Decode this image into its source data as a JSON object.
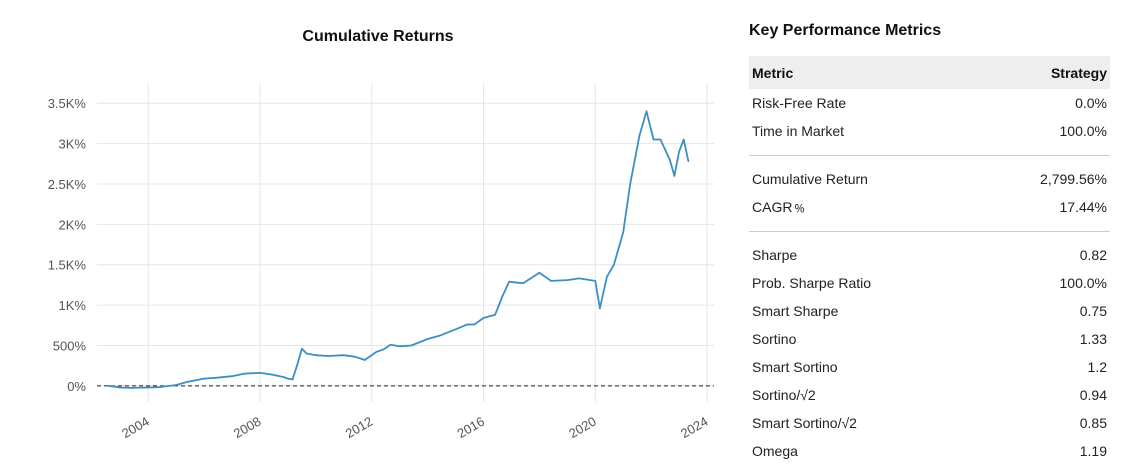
{
  "chart_data": {
    "type": "line",
    "title": "Cumulative Returns",
    "xlabel": "",
    "ylabel": "",
    "x_range": [
      "2002-03",
      "2024-04"
    ],
    "ylim": [
      -200,
      3750
    ],
    "x_ticks": [
      "2004",
      "2008",
      "2012",
      "2016",
      "2020",
      "2024"
    ],
    "y_ticks": [
      0,
      500,
      1000,
      1500,
      2000,
      2500,
      3000,
      3500
    ],
    "y_tick_labels": [
      "0%",
      "500%",
      "1K%",
      "1.5K%",
      "2K%",
      "2.5K%",
      "3K%",
      "3.5K%"
    ],
    "grid": true,
    "reference_line": {
      "y": 0,
      "style": "dashed"
    },
    "series": [
      {
        "color": "#3b8fc4",
        "points": [
          [
            "2002-08",
            0
          ],
          [
            "2003-01",
            -20
          ],
          [
            "2003-06",
            -25
          ],
          [
            "2004-01",
            -20
          ],
          [
            "2004-06",
            -15
          ],
          [
            "2005-01",
            10
          ],
          [
            "2005-06",
            50
          ],
          [
            "2006-01",
            90
          ],
          [
            "2006-06",
            100
          ],
          [
            "2007-01",
            120
          ],
          [
            "2007-06",
            150
          ],
          [
            "2008-01",
            160
          ],
          [
            "2008-06",
            140
          ],
          [
            "2008-11",
            110
          ],
          [
            "2009-01",
            90
          ],
          [
            "2009-03",
            80
          ],
          [
            "2009-05",
            260
          ],
          [
            "2009-07",
            460
          ],
          [
            "2009-09",
            400
          ],
          [
            "2010-01",
            380
          ],
          [
            "2010-06",
            370
          ],
          [
            "2011-01",
            380
          ],
          [
            "2011-06",
            360
          ],
          [
            "2011-10",
            320
          ],
          [
            "2012-03",
            420
          ],
          [
            "2012-06",
            450
          ],
          [
            "2012-09",
            510
          ],
          [
            "2013-01",
            490
          ],
          [
            "2013-06",
            500
          ],
          [
            "2014-01",
            580
          ],
          [
            "2014-06",
            620
          ],
          [
            "2015-01",
            700
          ],
          [
            "2015-06",
            760
          ],
          [
            "2015-09",
            760
          ],
          [
            "2016-01",
            840
          ],
          [
            "2016-06",
            880
          ],
          [
            "2016-09",
            1100
          ],
          [
            "2016-12",
            1290
          ],
          [
            "2017-06",
            1270
          ],
          [
            "2018-01",
            1400
          ],
          [
            "2018-06",
            1300
          ],
          [
            "2019-01",
            1310
          ],
          [
            "2019-06",
            1330
          ],
          [
            "2020-01",
            1300
          ],
          [
            "2020-03",
            960
          ],
          [
            "2020-06",
            1350
          ],
          [
            "2020-09",
            1500
          ],
          [
            "2021-01",
            1900
          ],
          [
            "2021-04",
            2500
          ],
          [
            "2021-08",
            3100
          ],
          [
            "2021-11",
            3400
          ],
          [
            "2022-02",
            3050
          ],
          [
            "2022-05",
            3050
          ],
          [
            "2022-09",
            2800
          ],
          [
            "2022-11",
            2600
          ],
          [
            "2023-01",
            2900
          ],
          [
            "2023-03",
            3050
          ],
          [
            "2023-05",
            2780
          ]
        ]
      }
    ]
  },
  "metrics": {
    "title": "Key Performance Metrics",
    "header": {
      "metric": "Metric",
      "strategy": "Strategy"
    },
    "groups": [
      [
        {
          "label": "Risk-Free Rate",
          "value": "0.0%"
        },
        {
          "label": "Time in Market",
          "value": "100.0%"
        }
      ],
      [
        {
          "label": "Cumulative Return",
          "value": "2,799.56%"
        },
        {
          "label": "CAGR﹪",
          "value": "17.44%"
        }
      ],
      [
        {
          "label": "Sharpe",
          "value": "0.82"
        },
        {
          "label": "Prob. Sharpe Ratio",
          "value": "100.0%"
        },
        {
          "label": "Smart Sharpe",
          "value": "0.75"
        },
        {
          "label": "Sortino",
          "value": "1.33"
        },
        {
          "label": "Smart Sortino",
          "value": "1.2"
        },
        {
          "label": "Sortino/√2",
          "value": "0.94"
        },
        {
          "label": "Smart Sortino/√2",
          "value": "0.85"
        },
        {
          "label": "Omega",
          "value": "1.19"
        }
      ]
    ]
  }
}
